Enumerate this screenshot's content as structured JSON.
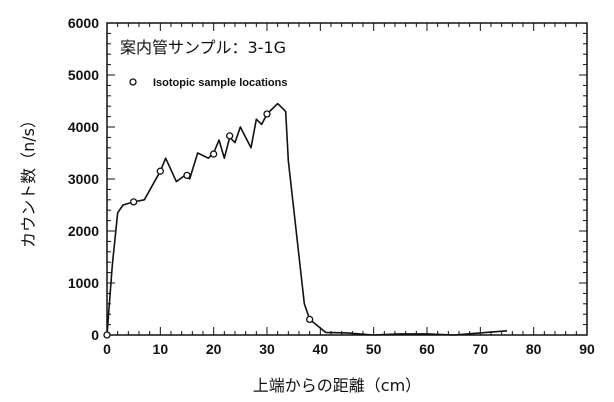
{
  "chart_data": {
    "type": "line",
    "title": "案内管サンプル：3-1G",
    "xlabel": "上端からの距離（cm）",
    "ylabel": "カウント数（n/s）",
    "xlim": [
      0,
      90
    ],
    "ylim": [
      0,
      6000
    ],
    "xticks": [
      0,
      10,
      20,
      30,
      40,
      50,
      60,
      70,
      80,
      90
    ],
    "yticks": [
      0,
      1000,
      2000,
      3000,
      4000,
      5000,
      6000
    ],
    "legend": {
      "marker": "open-circle",
      "label": "Isotopic sample locations",
      "placement": "top-left"
    },
    "series": [
      {
        "name": "count rate",
        "x": [
          0,
          1,
          2,
          3,
          5,
          7,
          10,
          11,
          13,
          15,
          15.5,
          17,
          19,
          20,
          21,
          22,
          23,
          24,
          25,
          27,
          28,
          29,
          30,
          32,
          33.5,
          34,
          37,
          38,
          41,
          45,
          50,
          55,
          60,
          65,
          70,
          75
        ],
        "y": [
          0,
          1350,
          2350,
          2500,
          2560,
          2600,
          3150,
          3400,
          2950,
          3100,
          3000,
          3500,
          3400,
          3500,
          3750,
          3400,
          3800,
          3700,
          4000,
          3600,
          4150,
          4050,
          4250,
          4450,
          4300,
          3350,
          600,
          300,
          50,
          40,
          0,
          20,
          20,
          0,
          40,
          80
        ]
      },
      {
        "name": "Isotopic sample locations",
        "x": [
          0,
          5,
          10,
          15,
          20,
          23,
          30,
          38
        ],
        "y": [
          0,
          2560,
          3150,
          3070,
          3480,
          3830,
          4250,
          300
        ]
      }
    ]
  }
}
